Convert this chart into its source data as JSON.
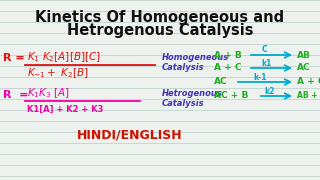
{
  "bg_color": "#eef2ee",
  "line_color": "#b8ccc8",
  "title_line1": "Kinetics Of Homogeneous and",
  "title_line2": "Hetrogenous Catalysis",
  "title_color": "#111111",
  "title_fontsize": 10.5,
  "eq1_color": "#dd1111",
  "eq2_color": "#ee00aa",
  "hom_label1": "Homogeneous",
  "hom_label2": "Catalysis",
  "hom_color": "#4433bb",
  "het_label1": "Hetrogenous",
  "het_label2": "Catalysis",
  "het_color": "#4433bb",
  "hindi_text": "HINDI/ENGLISH",
  "hindi_color": "#cc1100",
  "rxn_color": "#22aa22",
  "arrow_label_color": "#00aacc"
}
